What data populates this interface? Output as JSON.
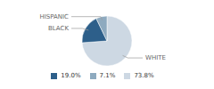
{
  "chart_data": {
    "type": "pie",
    "categories": [
      "WHITE",
      "BLACK",
      "HISPANIC"
    ],
    "values": [
      73.8,
      19.0,
      7.1
    ],
    "value_labels": [
      "73.8%",
      "19.0%",
      "7.1%"
    ],
    "colors": [
      "#cdd8e3",
      "#2d5f8a",
      "#8eaabf"
    ],
    "legend": "bottom"
  }
}
